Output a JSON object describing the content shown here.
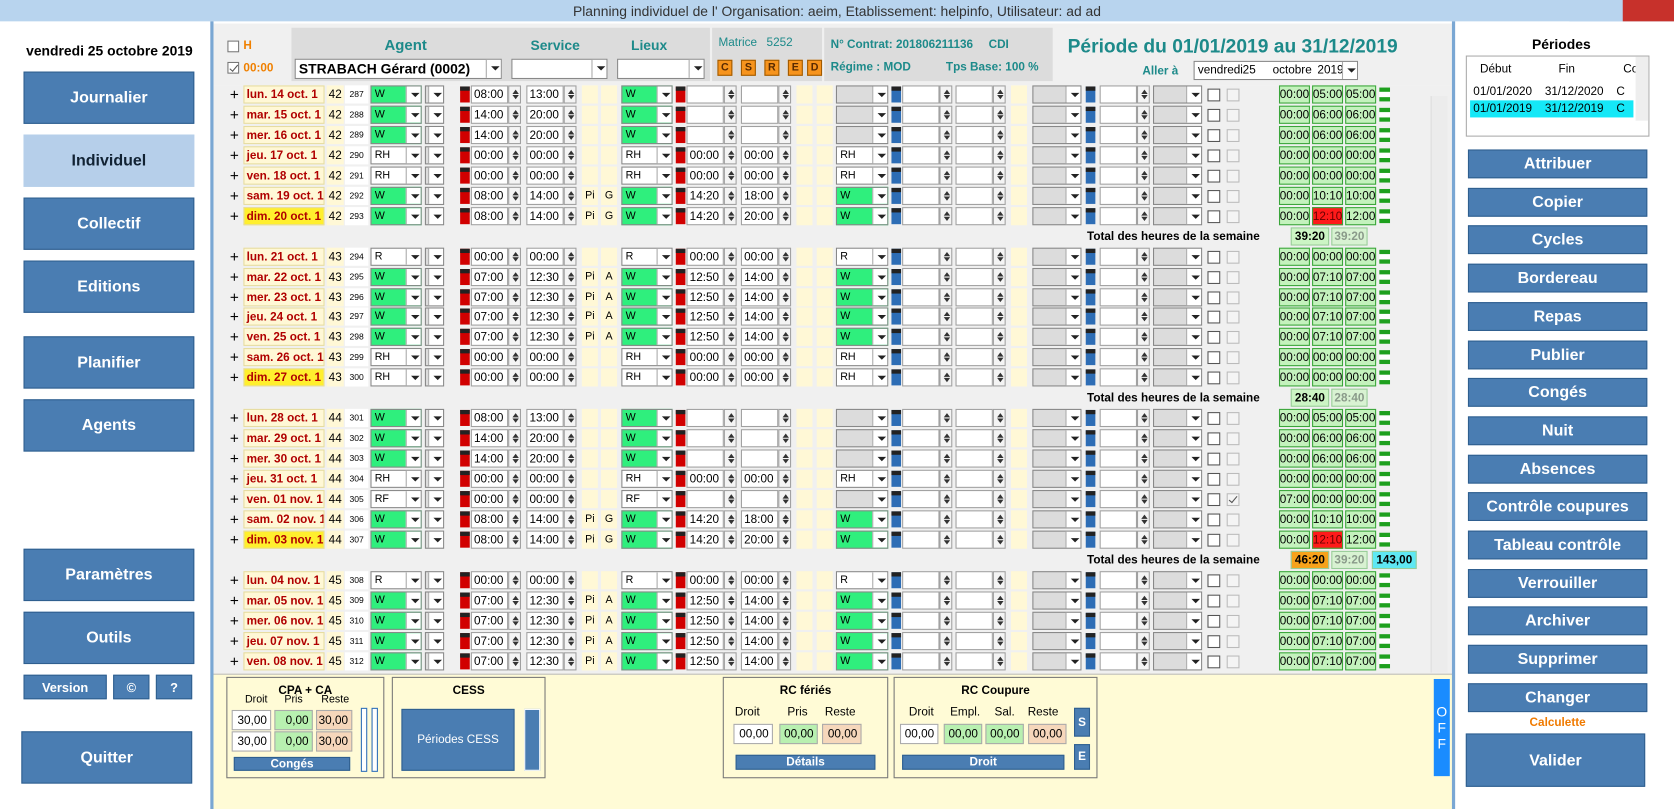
{
  "window": {
    "title": "Planning individuel de l' Organisation: aeim, Etablissement: helpinfo, Utilisateur: ad ad"
  },
  "nav": {
    "date": "vendredi 25 octobre 2019",
    "buttons": [
      "Journalier",
      "Individuel",
      "Collectif",
      "Editions",
      "Planifier",
      "Agents",
      "Paramètres",
      "Outils"
    ],
    "small": [
      "Version",
      "©",
      "?"
    ],
    "quit": "Quitter"
  },
  "header": {
    "h": "H",
    "time": "00:00",
    "agent_label": "Agent",
    "service_label": "Service",
    "lieux_label": "Lieux",
    "agent": "STRABACH Gérard (0002)",
    "matrice_label": "Matrice",
    "matrice": "5252",
    "codes": [
      "C",
      "S",
      "R",
      "E",
      "D"
    ],
    "contrat": "N° Contrat: 201806211136",
    "contract_type": "CDI",
    "regime": "Régime : MOD",
    "tps": "Tps Base: 100 %",
    "period": "Période du 01/01/2019 au 31/12/2019",
    "goto_label": "Aller à",
    "goto": [
      "vendredi",
      "25",
      "octobre",
      "2019"
    ]
  },
  "weeks": [
    {
      "rows": [
        {
          "d": "lun. 14 oct. 1",
          "w": "42",
          "n": "287",
          "c1": "W",
          "t1": "08:00",
          "t2": "13:00",
          "c2": "W",
          "r": [
            "00:00",
            "05:00",
            "05:00"
          ]
        },
        {
          "d": "mar. 15 oct. 1",
          "w": "42",
          "n": "288",
          "c1": "W",
          "t1": "14:00",
          "t2": "20:00",
          "c2": "W",
          "r": [
            "00:00",
            "06:00",
            "06:00"
          ]
        },
        {
          "d": "mer. 16 oct. 1",
          "w": "42",
          "n": "289",
          "c1": "W",
          "t1": "14:00",
          "t2": "20:00",
          "c2": "W",
          "r": [
            "00:00",
            "06:00",
            "06:00"
          ]
        },
        {
          "d": "jeu. 17 oct. 1",
          "w": "42",
          "n": "290",
          "c1": "RH",
          "t1": "00:00",
          "t2": "00:00",
          "c2": "RH",
          "t3": "00:00",
          "t4": "00:00",
          "c3": "RH",
          "r": [
            "00:00",
            "00:00",
            "00:00"
          ]
        },
        {
          "d": "ven. 18 oct. 1",
          "w": "42",
          "n": "291",
          "c1": "RH",
          "t1": "00:00",
          "t2": "00:00",
          "c2": "RH",
          "t3": "00:00",
          "t4": "00:00",
          "c3": "RH",
          "r": [
            "00:00",
            "00:00",
            "00:00"
          ]
        },
        {
          "d": "sam. 19 oct. 1",
          "w": "42",
          "n": "292",
          "c1": "W",
          "t1": "08:00",
          "t2": "14:00",
          "f1": "Pi",
          "f2": "G",
          "c2": "W",
          "t3": "14:20",
          "t4": "18:00",
          "c3": "W",
          "r": [
            "00:00",
            "10:10",
            "10:00"
          ]
        },
        {
          "d": "dim. 20 oct. 1",
          "w": "42",
          "n": "293",
          "c1": "W",
          "t1": "08:00",
          "t2": "14:00",
          "f1": "Pi",
          "f2": "G",
          "c2": "W",
          "t3": "14:20",
          "t4": "20:00",
          "c3": "W",
          "r": [
            "00:00",
            "12:10",
            "12:00"
          ],
          "red": 1
        }
      ],
      "total": {
        "label": "Total des heures de la semaine",
        "values": [
          "39:20",
          "39:20"
        ]
      }
    },
    {
      "rows": [
        {
          "d": "lun. 21 oct. 1",
          "w": "43",
          "n": "294",
          "c1": "R",
          "t1": "00:00",
          "t2": "00:00",
          "c2": "R",
          "t3": "00:00",
          "t4": "00:00",
          "c3": "R",
          "r": [
            "00:00",
            "00:00",
            "00:00"
          ]
        },
        {
          "d": "mar. 22 oct. 1",
          "w": "43",
          "n": "295",
          "c1": "W",
          "t1": "07:00",
          "t2": "12:30",
          "f1": "Pi",
          "f2": "A",
          "c2": "W",
          "t3": "12:50",
          "t4": "14:00",
          "c3": "W",
          "r": [
            "00:00",
            "07:10",
            "07:00"
          ]
        },
        {
          "d": "mer. 23 oct. 1",
          "w": "43",
          "n": "296",
          "c1": "W",
          "t1": "07:00",
          "t2": "12:30",
          "f1": "Pi",
          "f2": "A",
          "c2": "W",
          "t3": "12:50",
          "t4": "14:00",
          "c3": "W",
          "r": [
            "00:00",
            "07:10",
            "07:00"
          ]
        },
        {
          "d": "jeu. 24 oct. 1",
          "w": "43",
          "n": "297",
          "c1": "W",
          "t1": "07:00",
          "t2": "12:30",
          "f1": "Pi",
          "f2": "A",
          "c2": "W",
          "t3": "12:50",
          "t4": "14:00",
          "c3": "W",
          "r": [
            "00:00",
            "07:10",
            "07:00"
          ]
        },
        {
          "d": "ven. 25 oct. 1",
          "w": "43",
          "n": "298",
          "c1": "W",
          "t1": "07:00",
          "t2": "12:30",
          "f1": "Pi",
          "f2": "A",
          "c2": "W",
          "t3": "12:50",
          "t4": "14:00",
          "c3": "W",
          "r": [
            "00:00",
            "07:10",
            "07:00"
          ]
        },
        {
          "d": "sam. 26 oct. 1",
          "w": "43",
          "n": "299",
          "c1": "RH",
          "t1": "00:00",
          "t2": "00:00",
          "c2": "RH",
          "t3": "00:00",
          "t4": "00:00",
          "c3": "RH",
          "r": [
            "00:00",
            "00:00",
            "00:00"
          ]
        },
        {
          "d": "dim. 27 oct. 1",
          "w": "43",
          "n": "300",
          "c1": "RH",
          "t1": "00:00",
          "t2": "00:00",
          "c2": "RH",
          "t3": "00:00",
          "t4": "00:00",
          "c3": "RH",
          "r": [
            "00:00",
            "00:00",
            "00:00"
          ]
        }
      ],
      "total": {
        "label": "Total des heures de la semaine",
        "values": [
          "28:40",
          "28:40"
        ]
      }
    },
    {
      "rows": [
        {
          "d": "lun. 28 oct. 1",
          "w": "44",
          "n": "301",
          "c1": "W",
          "t1": "08:00",
          "t2": "13:00",
          "c2": "W",
          "r": [
            "00:00",
            "05:00",
            "05:00"
          ]
        },
        {
          "d": "mar. 29 oct. 1",
          "w": "44",
          "n": "302",
          "c1": "W",
          "t1": "14:00",
          "t2": "20:00",
          "c2": "W",
          "r": [
            "00:00",
            "06:00",
            "06:00"
          ]
        },
        {
          "d": "mer. 30 oct. 1",
          "w": "44",
          "n": "303",
          "c1": "W",
          "t1": "14:00",
          "t2": "20:00",
          "c2": "W",
          "r": [
            "00:00",
            "06:00",
            "06:00"
          ]
        },
        {
          "d": "jeu. 31 oct. 1",
          "w": "44",
          "n": "304",
          "c1": "RH",
          "t1": "00:00",
          "t2": "00:00",
          "c2": "RH",
          "t3": "00:00",
          "t4": "00:00",
          "c3": "RH",
          "r": [
            "00:00",
            "00:00",
            "00:00"
          ]
        },
        {
          "d": "ven. 01 nov. 1",
          "w": "44",
          "n": "305",
          "c1": "RF",
          "t1": "00:00",
          "t2": "00:00",
          "c2": "RF",
          "r": [
            "07:00",
            "00:00",
            "00:00"
          ],
          "check": true
        },
        {
          "d": "sam. 02 nov. 1",
          "w": "44",
          "n": "306",
          "c1": "W",
          "t1": "08:00",
          "t2": "14:00",
          "f1": "Pi",
          "f2": "G",
          "c2": "W",
          "t3": "14:20",
          "t4": "18:00",
          "c3": "W",
          "r": [
            "00:00",
            "10:10",
            "10:00"
          ]
        },
        {
          "d": "dim. 03 nov. 1",
          "w": "44",
          "n": "307",
          "c1": "W",
          "t1": "08:00",
          "t2": "14:00",
          "f1": "Pi",
          "f2": "G",
          "c2": "W",
          "t3": "14:20",
          "t4": "20:00",
          "c3": "W",
          "r": [
            "00:00",
            "12:10",
            "12:00"
          ],
          "red": 1
        }
      ],
      "total": {
        "label": "Total des heures de la semaine",
        "values": [
          "46:20",
          "39:20",
          "143,00"
        ],
        "alert": true
      }
    },
    {
      "rows": [
        {
          "d": "lun. 04 nov. 1",
          "w": "45",
          "n": "308",
          "c1": "R",
          "t1": "00:00",
          "t2": "00:00",
          "c2": "R",
          "t3": "00:00",
          "t4": "00:00",
          "c3": "R",
          "r": [
            "00:00",
            "00:00",
            "00:00"
          ]
        },
        {
          "d": "mar. 05 nov. 1",
          "w": "45",
          "n": "309",
          "c1": "W",
          "t1": "07:00",
          "t2": "12:30",
          "f1": "Pi",
          "f2": "A",
          "c2": "W",
          "t3": "12:50",
          "t4": "14:00",
          "c3": "W",
          "r": [
            "00:00",
            "07:10",
            "07:00"
          ]
        },
        {
          "d": "mer. 06 nov. 1",
          "w": "45",
          "n": "310",
          "c1": "W",
          "t1": "07:00",
          "t2": "12:30",
          "f1": "Pi",
          "f2": "A",
          "c2": "W",
          "t3": "12:50",
          "t4": "14:00",
          "c3": "W",
          "r": [
            "00:00",
            "07:10",
            "07:00"
          ]
        },
        {
          "d": "jeu. 07 nov. 1",
          "w": "45",
          "n": "311",
          "c1": "W",
          "t1": "07:00",
          "t2": "12:30",
          "f1": "Pi",
          "f2": "A",
          "c2": "W",
          "t3": "12:50",
          "t4": "14:00",
          "c3": "W",
          "r": [
            "00:00",
            "07:10",
            "07:00"
          ]
        },
        {
          "d": "ven. 08 nov. 1",
          "w": "45",
          "n": "312",
          "c1": "W",
          "t1": "07:00",
          "t2": "12:30",
          "f1": "Pi",
          "f2": "A",
          "c2": "W",
          "t3": "12:50",
          "t4": "14:00",
          "c3": "W",
          "r": [
            "00:00",
            "07:10",
            "07:00"
          ]
        }
      ]
    }
  ],
  "bottom": {
    "cpa": {
      "title": "CPA + CA",
      "labels": [
        "Droit",
        "Pris",
        "Reste"
      ],
      "rows": [
        [
          "30,00",
          "0,00",
          "30,00"
        ],
        [
          "30,00",
          "0,00",
          "30,00"
        ]
      ],
      "button": "Congés"
    },
    "cess": {
      "title": "CESS",
      "button": "Périodes CESS"
    },
    "rc_feries": {
      "title": "RC fériés",
      "labels": [
        "Droit",
        "Pris",
        "Reste"
      ],
      "values": [
        "00,00",
        "00,00",
        "00,00"
      ],
      "button": "Détails"
    },
    "rc_coupure": {
      "title": "RC Coupure",
      "labels": [
        "Droit",
        "Empl.",
        "Sal.",
        "Reste"
      ],
      "values": [
        "00,00",
        "00,00",
        "00,00",
        "00,00"
      ],
      "button": "Droit",
      "side": [
        "S",
        "E"
      ]
    },
    "off": "OFF"
  },
  "periods": {
    "title": "Périodes",
    "columns": [
      "Début",
      "Fin",
      "Co"
    ],
    "rows": [
      [
        "01/01/2020",
        "31/12/2020",
        "C"
      ],
      [
        "01/01/2019",
        "31/12/2019",
        "C"
      ]
    ]
  },
  "actions": [
    "Attribuer",
    "Copier",
    "Cycles",
    "Bordereau",
    "Repas",
    "Publier",
    "Congés",
    "Nuit",
    "Absences",
    "Contrôle coupures",
    "Tableau contrôle",
    "Verrouiller",
    "Archiver",
    "Supprimer",
    "Changer"
  ],
  "calc": "Calculette",
  "validate": "Valider"
}
